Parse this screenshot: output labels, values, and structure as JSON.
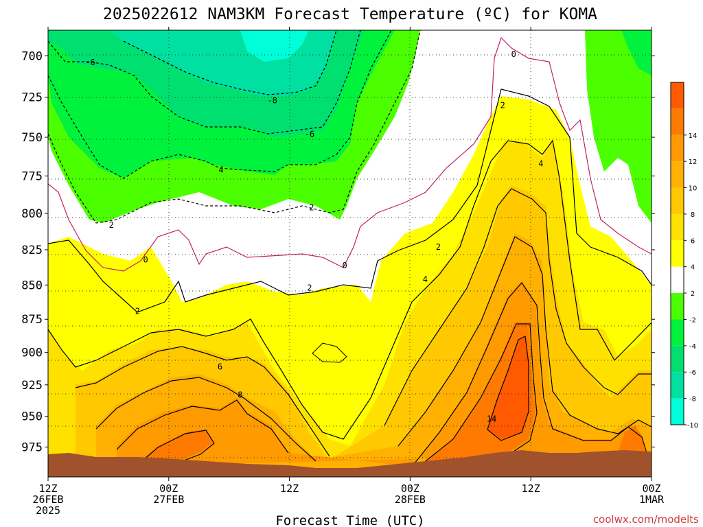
{
  "chart_data": {
    "type": "heatmap",
    "title": "2025022612 NAM3KM Forecast Temperature (ºC) for KOMA",
    "xlabel": "Forecast Time (UTC)",
    "ylabel": "",
    "credit": "coolwx.com/modelts",
    "y_axis": {
      "ticks": [
        700,
        725,
        750,
        775,
        800,
        825,
        850,
        875,
        900,
        925,
        950,
        975
      ],
      "inverted": true,
      "range": [
        685,
        1000
      ]
    },
    "x_axis": {
      "range_hours": [
        0,
        60
      ],
      "ticks": [
        {
          "hour": 0,
          "label_lines": [
            "12Z",
            "26FEB",
            "2025"
          ]
        },
        {
          "hour": 12,
          "label_lines": [
            "00Z",
            "27FEB"
          ]
        },
        {
          "hour": 24,
          "label_lines": [
            "12Z"
          ]
        },
        {
          "hour": 36,
          "label_lines": [
            "00Z",
            "28FEB"
          ]
        },
        {
          "hour": 48,
          "label_lines": [
            "12Z"
          ]
        },
        {
          "hour": 60,
          "label_lines": [
            "00Z",
            "1MAR"
          ]
        }
      ]
    },
    "grid": true,
    "colorbar": {
      "position": "right",
      "levels": [
        {
          "label": "",
          "color": "#ff5a00"
        },
        {
          "label": "14",
          "color": "#ff7a00"
        },
        {
          "label": "12",
          "color": "#ff9a00"
        },
        {
          "label": "10",
          "color": "#ffb000"
        },
        {
          "label": "8",
          "color": "#ffc800"
        },
        {
          "label": "6",
          "color": "#ffe100"
        },
        {
          "label": "4",
          "color": "#ffff00"
        },
        {
          "label": "2",
          "color": "#ffffff"
        },
        {
          "label": "-2",
          "color": "#4cff00"
        },
        {
          "label": "-4",
          "color": "#00f23c"
        },
        {
          "label": "-6",
          "color": "#00e070"
        },
        {
          "label": "-8",
          "color": "#00e0a0"
        },
        {
          "label": "-10",
          "color": "#00ffd8"
        }
      ]
    },
    "contour_labels": [
      {
        "text": "-6",
        "hour": 4.2,
        "p": 704
      },
      {
        "text": "-8",
        "hour": 22.3,
        "p": 727
      },
      {
        "text": "-6",
        "hour": 26.0,
        "p": 748
      },
      {
        "text": "4",
        "hour": 17.2,
        "p": 771
      },
      {
        "text": "2",
        "hour": 26.2,
        "p": 796
      },
      {
        "text": "2",
        "hour": 6.3,
        "p": 808
      },
      {
        "text": "0",
        "hour": 9.7,
        "p": 832
      },
      {
        "text": "0",
        "hour": 29.5,
        "p": 836
      },
      {
        "text": "2",
        "hour": 26.0,
        "p": 852
      },
      {
        "text": "2",
        "hour": 8.9,
        "p": 869
      },
      {
        "text": "6",
        "hour": 17.1,
        "p": 911
      },
      {
        "text": "8",
        "hour": 19.1,
        "p": 933
      },
      {
        "text": "0",
        "hour": 46.3,
        "p": 699
      },
      {
        "text": "2",
        "hour": 45.2,
        "p": 730
      },
      {
        "text": "4",
        "hour": 49.0,
        "p": 767
      },
      {
        "text": "2",
        "hour": 38.8,
        "p": 823
      },
      {
        "text": "4",
        "hour": 37.5,
        "p": 846
      },
      {
        "text": "14",
        "hour": 44.1,
        "p": 952
      }
    ],
    "colors": {
      "ground": "#a0522d",
      "contour_zero": "#c0206a",
      "contour": "#000000"
    }
  }
}
